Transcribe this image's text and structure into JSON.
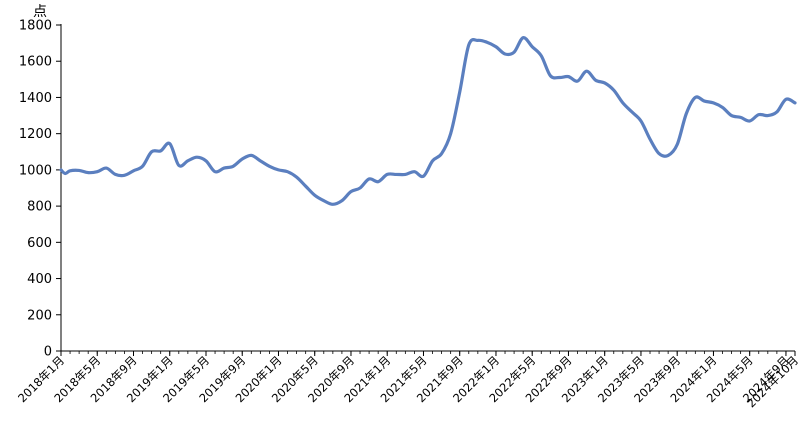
{
  "chart_data": {
    "type": "line",
    "unit_label": "点",
    "ylim": [
      0,
      1800
    ],
    "y_ticks": [
      0,
      200,
      400,
      600,
      800,
      1000,
      1200,
      1400,
      1600,
      1800
    ],
    "x_tick_labels": [
      "2018年1月",
      "2018年5月",
      "2018年9月",
      "2019年1月",
      "2019年5月",
      "2019年9月",
      "2020年1月",
      "2020年5月",
      "2020年9月",
      "2021年1月",
      "2021年5月",
      "2021年9月",
      "2022年1月",
      "2022年5月",
      "2022年9月",
      "2023年1月",
      "2023年5月",
      "2023年9月",
      "2024年1月",
      "2024年5月",
      "2024年9月",
      "2024年10月"
    ],
    "grid": false,
    "series": [
      {
        "color": "#5b7fbf",
        "points": [
          [
            "2018-01",
            1000
          ],
          [
            "2018-01-15",
            980
          ],
          [
            "2018-02",
            995
          ],
          [
            "2018-03",
            997
          ],
          [
            "2018-04",
            985
          ],
          [
            "2018-05",
            990
          ],
          [
            "2018-06",
            1010
          ],
          [
            "2018-07",
            975
          ],
          [
            "2018-08",
            970
          ],
          [
            "2018-09",
            995
          ],
          [
            "2018-10",
            1020
          ],
          [
            "2018-11",
            1100
          ],
          [
            "2018-12",
            1105
          ],
          [
            "2019-01",
            1145
          ],
          [
            "2019-02",
            1025
          ],
          [
            "2019-03",
            1050
          ],
          [
            "2019-04",
            1070
          ],
          [
            "2019-05",
            1050
          ],
          [
            "2019-06",
            990
          ],
          [
            "2019-07",
            1010
          ],
          [
            "2019-08",
            1020
          ],
          [
            "2019-09",
            1060
          ],
          [
            "2019-10",
            1080
          ],
          [
            "2019-11",
            1050
          ],
          [
            "2019-12",
            1020
          ],
          [
            "2020-01",
            1000
          ],
          [
            "2020-02",
            990
          ],
          [
            "2020-03",
            960
          ],
          [
            "2020-04",
            910
          ],
          [
            "2020-05",
            860
          ],
          [
            "2020-06",
            830
          ],
          [
            "2020-07",
            810
          ],
          [
            "2020-08",
            830
          ],
          [
            "2020-09",
            880
          ],
          [
            "2020-10",
            900
          ],
          [
            "2020-11",
            950
          ],
          [
            "2020-12",
            935
          ],
          [
            "2021-01",
            975
          ],
          [
            "2021-02",
            975
          ],
          [
            "2021-03",
            975
          ],
          [
            "2021-04",
            990
          ],
          [
            "2021-05",
            965
          ],
          [
            "2021-06",
            1050
          ],
          [
            "2021-07",
            1090
          ],
          [
            "2021-08",
            1200
          ],
          [
            "2021-09",
            1430
          ],
          [
            "2021-10",
            1690
          ],
          [
            "2021-11",
            1715
          ],
          [
            "2021-12",
            1705
          ],
          [
            "2022-01",
            1680
          ],
          [
            "2022-02",
            1640
          ],
          [
            "2022-03",
            1650
          ],
          [
            "2022-04",
            1730
          ],
          [
            "2022-05",
            1680
          ],
          [
            "2022-06",
            1630
          ],
          [
            "2022-07",
            1520
          ],
          [
            "2022-08",
            1510
          ],
          [
            "2022-09",
            1515
          ],
          [
            "2022-10",
            1490
          ],
          [
            "2022-11",
            1545
          ],
          [
            "2022-12",
            1495
          ],
          [
            "2023-01",
            1480
          ],
          [
            "2023-02",
            1440
          ],
          [
            "2023-03",
            1370
          ],
          [
            "2023-04",
            1320
          ],
          [
            "2023-05",
            1270
          ],
          [
            "2023-06",
            1170
          ],
          [
            "2023-07",
            1090
          ],
          [
            "2023-08",
            1080
          ],
          [
            "2023-09",
            1140
          ],
          [
            "2023-10",
            1310
          ],
          [
            "2023-11",
            1400
          ],
          [
            "2023-12",
            1380
          ],
          [
            "2024-01",
            1370
          ],
          [
            "2024-02",
            1345
          ],
          [
            "2024-03",
            1300
          ],
          [
            "2024-04",
            1290
          ],
          [
            "2024-05",
            1270
          ],
          [
            "2024-06",
            1305
          ],
          [
            "2024-07",
            1300
          ],
          [
            "2024-08",
            1320
          ],
          [
            "2024-09",
            1390
          ],
          [
            "2024-10",
            1370
          ]
        ]
      }
    ]
  }
}
